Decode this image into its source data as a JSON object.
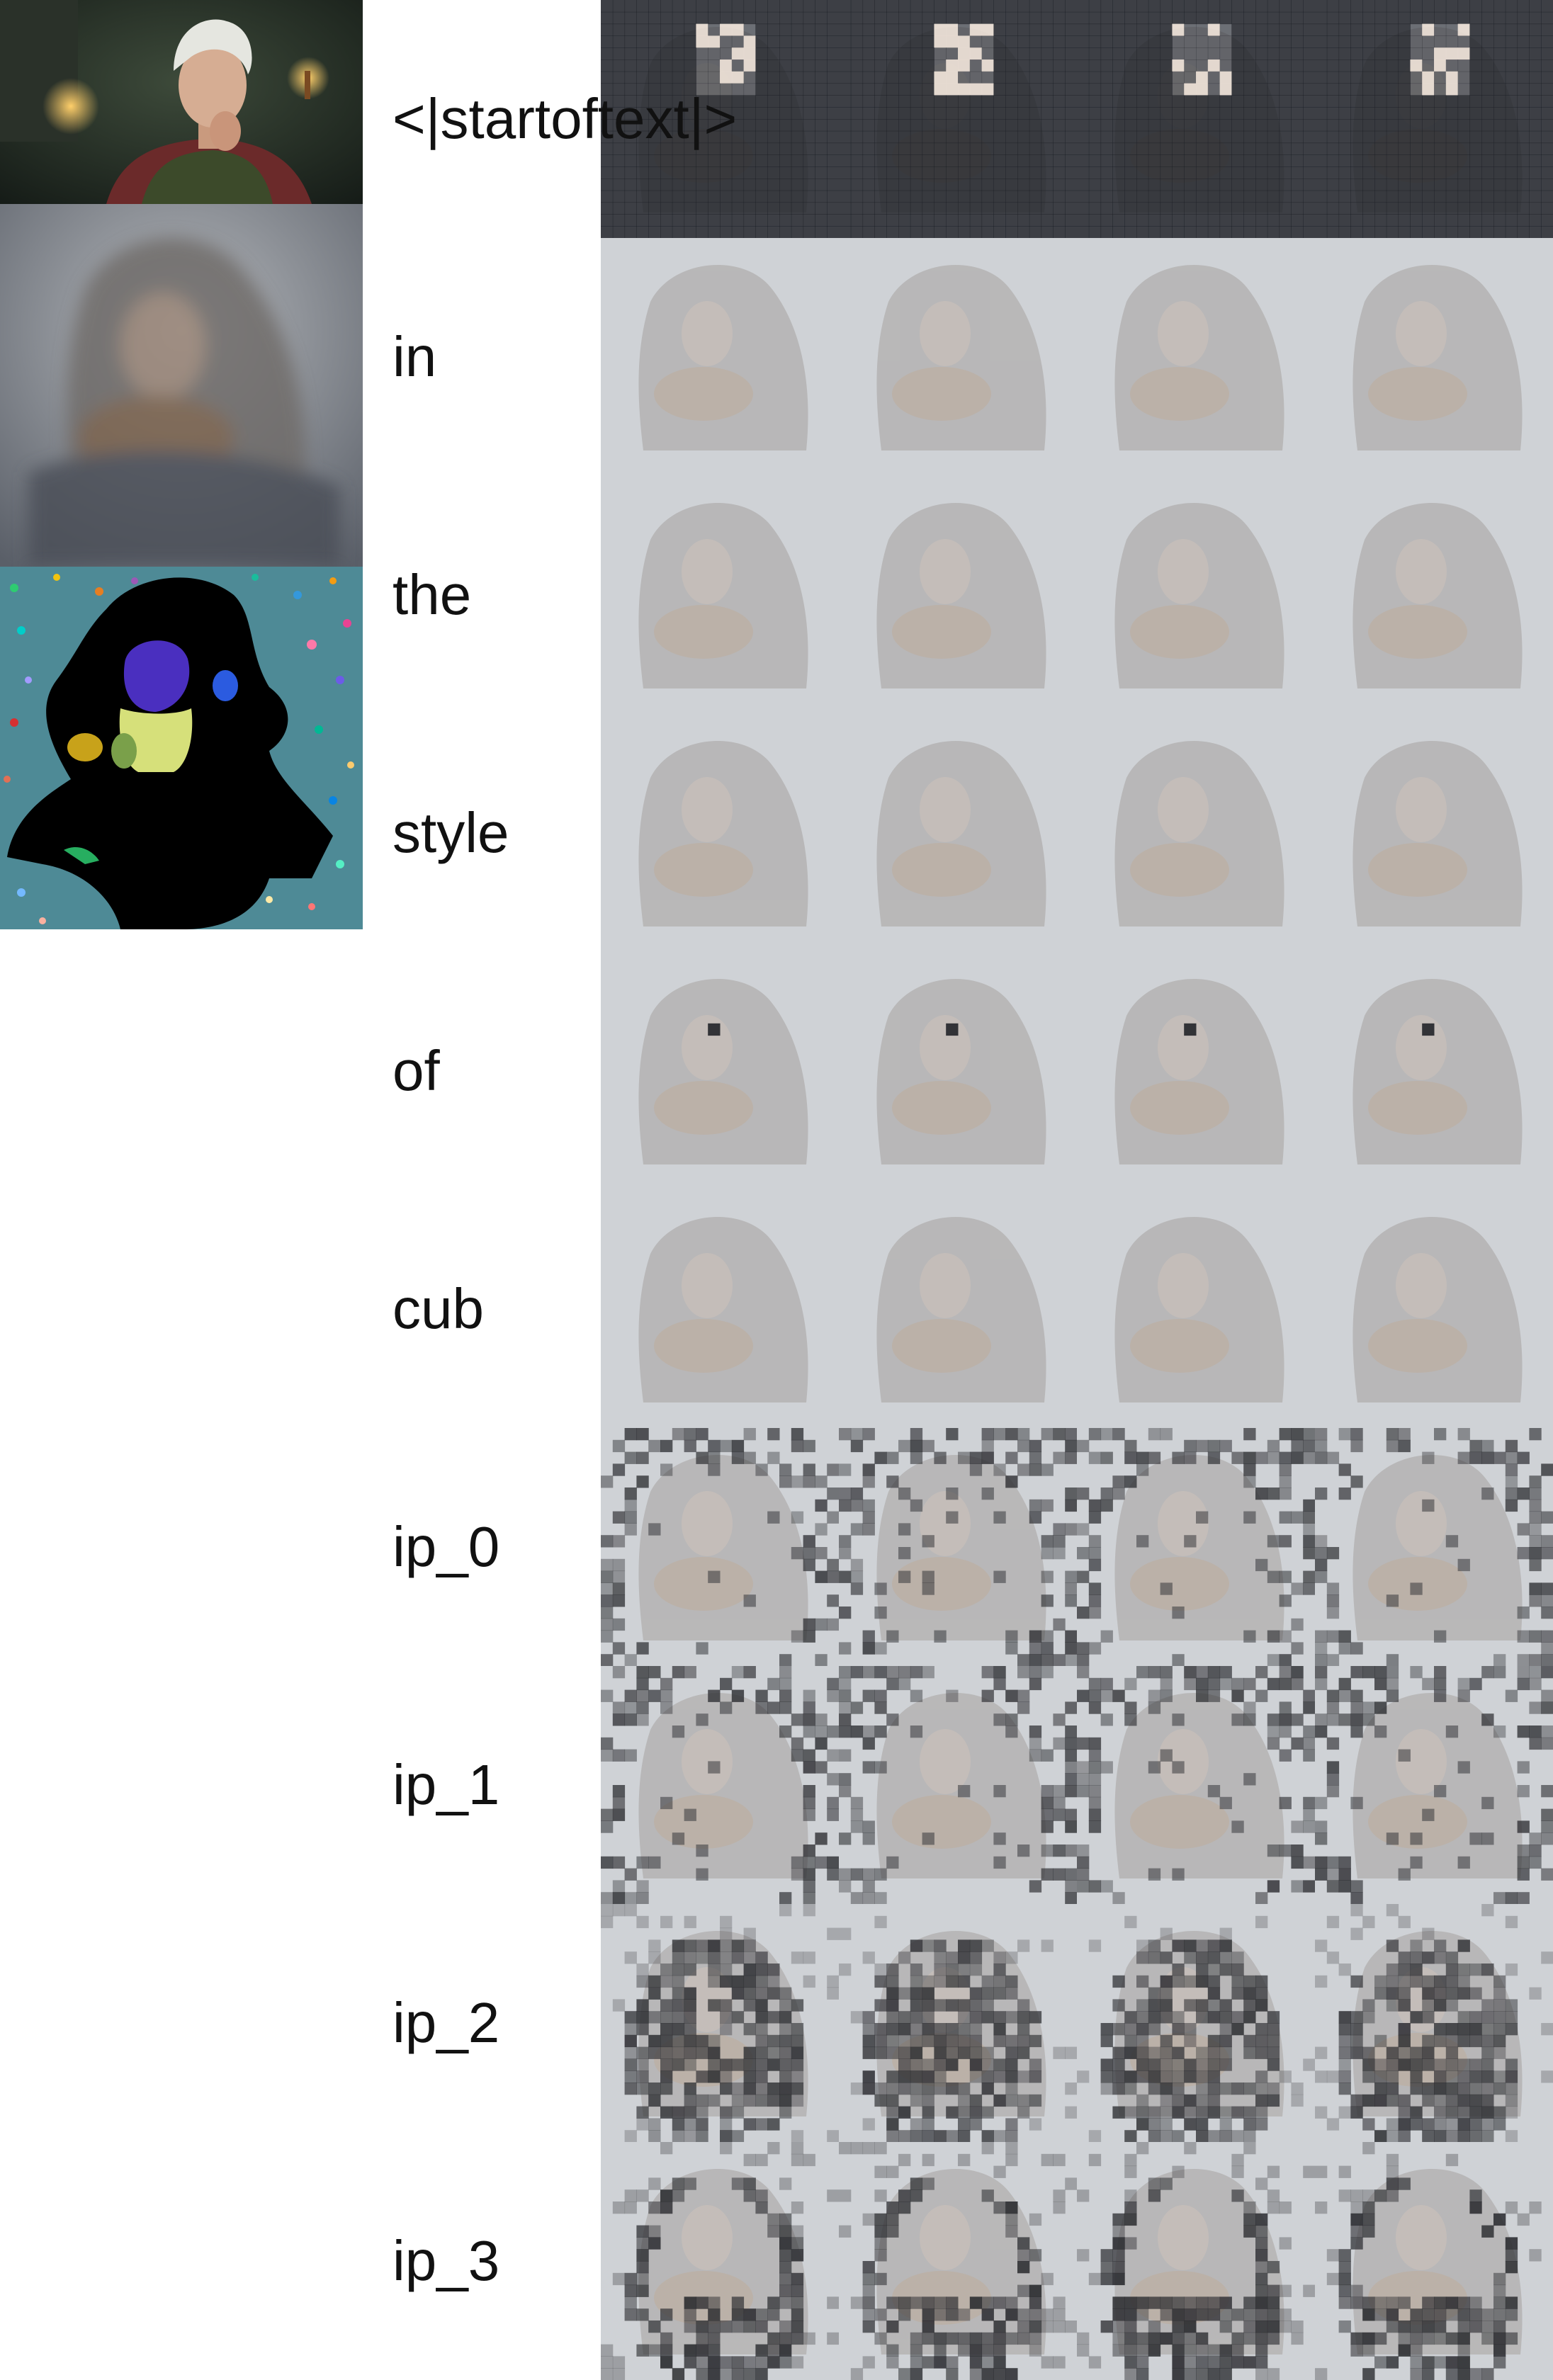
{
  "tokens": [
    "<|startoftext|>",
    "in",
    "the",
    "style",
    "of",
    "cub",
    "ip_0",
    "ip_1",
    "ip_2",
    "ip_3"
  ],
  "columns_per_row": 4,
  "left_images": [
    {
      "name": "reference-image",
      "kind": "photo"
    },
    {
      "name": "generated-image",
      "kind": "blurred"
    },
    {
      "name": "segmentation-map",
      "kind": "segmentation"
    }
  ],
  "colors": {
    "background": "#ffffff",
    "map_base": "#cfd2d6",
    "mask_dark": "#2a2b2f",
    "seg_background": "#4e8a96",
    "seg_face": "#4a2fbf",
    "seg_neck": "#d6e07a",
    "seg_body": "#000000"
  },
  "rows": [
    {
      "token": "<|startoftext|>",
      "pattern": "dark-with-bright-face"
    },
    {
      "token": "in",
      "pattern": "uniform"
    },
    {
      "token": "the",
      "pattern": "uniform"
    },
    {
      "token": "style",
      "pattern": "uniform"
    },
    {
      "token": "of",
      "pattern": "single-dark-patch"
    },
    {
      "token": "cub",
      "pattern": "uniform"
    },
    {
      "token": "ip_0",
      "pattern": "scattered-dark-background"
    },
    {
      "token": "ip_1",
      "pattern": "scattered-dark-background"
    },
    {
      "token": "ip_2",
      "pattern": "dark-body"
    },
    {
      "token": "ip_3",
      "pattern": "dark-silhouette"
    }
  ]
}
